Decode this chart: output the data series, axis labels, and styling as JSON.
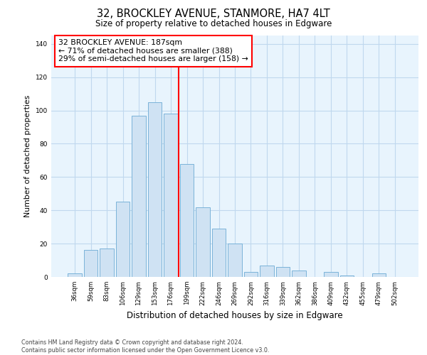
{
  "title1": "32, BROCKLEY AVENUE, STANMORE, HA7 4LT",
  "title2": "Size of property relative to detached houses in Edgware",
  "xlabel": "Distribution of detached houses by size in Edgware",
  "ylabel": "Number of detached properties",
  "categories": [
    "36sqm",
    "59sqm",
    "83sqm",
    "106sqm",
    "129sqm",
    "153sqm",
    "176sqm",
    "199sqm",
    "222sqm",
    "246sqm",
    "269sqm",
    "292sqm",
    "316sqm",
    "339sqm",
    "362sqm",
    "386sqm",
    "409sqm",
    "432sqm",
    "455sqm",
    "479sqm",
    "502sqm"
  ],
  "values": [
    2,
    16,
    17,
    45,
    97,
    105,
    98,
    68,
    42,
    29,
    20,
    3,
    7,
    6,
    4,
    0,
    3,
    1,
    0,
    2,
    0
  ],
  "bar_color": "#cfe2f3",
  "bar_edge_color": "#7ab3d9",
  "vline_x": 6.5,
  "vline_color": "red",
  "annotation_line1": "32 BROCKLEY AVENUE: 187sqm",
  "annotation_line2": "← 71% of detached houses are smaller (388)",
  "annotation_line3": "29% of semi-detached houses are larger (158) →",
  "footnote1": "Contains HM Land Registry data © Crown copyright and database right 2024.",
  "footnote2": "Contains public sector information licensed under the Open Government Licence v3.0.",
  "ylim": [
    0,
    145
  ],
  "bar_width": 0.85,
  "background_color": "#e8f4fd",
  "fig_background": "#ffffff",
  "grid_color": "#c0d8ee"
}
